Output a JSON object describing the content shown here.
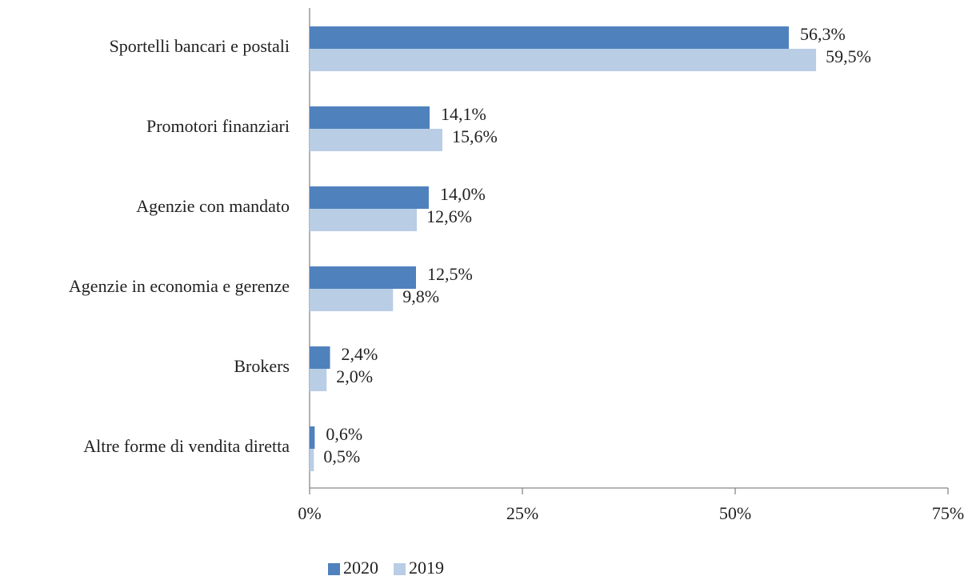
{
  "chart_data": {
    "type": "bar",
    "orientation": "horizontal",
    "categories": [
      "Sportelli bancari e postali",
      "Promotori finanziari",
      "Agenzie con mandato",
      "Agenzie in economia e gerenze",
      "Brokers",
      "Altre forme di vendita diretta"
    ],
    "series": [
      {
        "name": "2020",
        "color": "#4f81bd",
        "values": [
          56.3,
          14.1,
          14.0,
          12.5,
          2.4,
          0.6
        ],
        "value_labels": [
          "56,3%",
          "14,1%",
          "14,0%",
          "12,5%",
          "2,4%",
          "0,6%"
        ]
      },
      {
        "name": "2019",
        "color": "#b9cde5",
        "values": [
          59.5,
          15.6,
          12.6,
          9.8,
          2.0,
          0.5
        ],
        "value_labels": [
          "59,5%",
          "15,6%",
          "12,6%",
          "9,8%",
          "2,0%",
          "0,5%"
        ]
      }
    ],
    "xlim": [
      0,
      75
    ],
    "xticks": [
      {
        "value": 0,
        "label": "0%"
      },
      {
        "value": 25,
        "label": "25%"
      },
      {
        "value": 50,
        "label": "50%"
      },
      {
        "value": 75,
        "label": "75%"
      }
    ],
    "legend": "bottom"
  }
}
